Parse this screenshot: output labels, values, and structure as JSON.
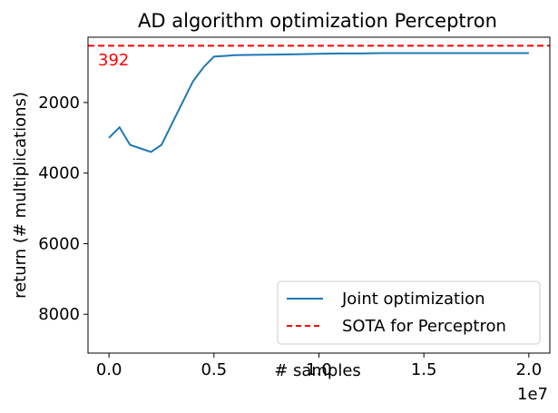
{
  "chart_data": {
    "type": "line",
    "title": "AD algorithm optimization Perceptron",
    "xlabel": "# samples",
    "ylabel": "return (# multiplications)",
    "x_offset_label": "1e7",
    "xlim": [
      -0.1,
      2.1
    ],
    "ylim": [
      9100,
      150
    ],
    "y_inverted": true,
    "x_ticks": [
      0.0,
      0.5,
      1.0,
      1.5,
      2.0
    ],
    "x_tick_labels": [
      "0.0",
      "0.5",
      "1.0",
      "1.5",
      "2.0"
    ],
    "y_ticks": [
      2000,
      4000,
      6000,
      8000
    ],
    "y_tick_labels": [
      "2000",
      "4000",
      "6000",
      "8000"
    ],
    "series": [
      {
        "name": "Joint optimization",
        "color": "#1f77b4",
        "style": "solid",
        "x": [
          0.0,
          0.05,
          0.1,
          0.15,
          0.2,
          0.25,
          0.3,
          0.35,
          0.4,
          0.45,
          0.5,
          0.55,
          0.6,
          0.7,
          0.8,
          0.9,
          1.0,
          1.1,
          1.2,
          1.3,
          1.4,
          1.5,
          1.6,
          1.7,
          1.8,
          1.9,
          2.0
        ],
        "y": [
          3000,
          2700,
          3200,
          3300,
          3400,
          3200,
          2600,
          2000,
          1400,
          1000,
          700,
          680,
          660,
          650,
          640,
          630,
          620,
          610,
          610,
          600,
          600,
          600,
          600,
          600,
          600,
          600,
          600
        ]
      },
      {
        "name": "SOTA for Perceptron",
        "color": "#ff0000",
        "style": "dashed",
        "y_constant": 392
      }
    ],
    "annotation": {
      "text": "392",
      "color": "#ff0000"
    },
    "legend_position": "lower-right"
  }
}
